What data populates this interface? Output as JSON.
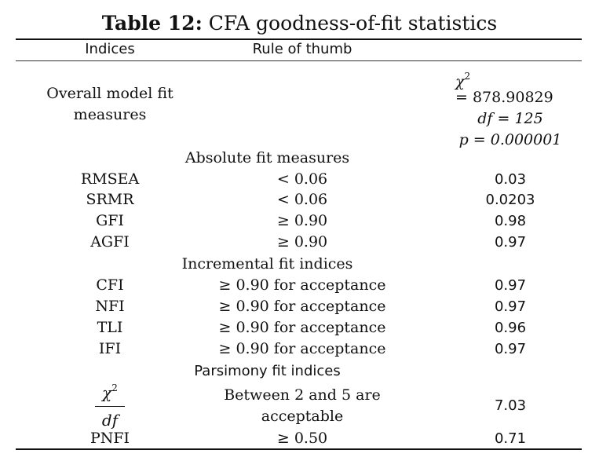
{
  "caption": {
    "label": "Table 12:",
    "text": "CFA goodness-of-fit statistics"
  },
  "header": {
    "col1": "Indices",
    "col2": "Rule of thumb",
    "col3": ""
  },
  "overall": {
    "label_line1": "Overall model fit",
    "label_line2": "measures",
    "chi_symbol": "χ",
    "chi_sup": "2",
    "chi_value": "= 878.90829",
    "df_line": "df = 125",
    "p_line": "p = 0.000001"
  },
  "sections": {
    "absolute": "Absolute fit measures",
    "incremental": "Incremental fit indices",
    "parsimony": "Parsimony fit indices"
  },
  "rows": [
    {
      "index": "RMSEA",
      "rule": "< 0.06",
      "value": "0.03"
    },
    {
      "index": "SRMR",
      "rule": "< 0.06",
      "value": "0.0203"
    },
    {
      "index": "GFI",
      "rule": "≥ 0.90",
      "value": "0.98"
    },
    {
      "index": "AGFI",
      "rule": "≥ 0.90",
      "value": "0.97"
    },
    {
      "index": "CFI",
      "rule": "≥ 0.90 for acceptance",
      "value": "0.97"
    },
    {
      "index": "NFI",
      "rule": "≥ 0.90 for acceptance",
      "value": "0.97"
    },
    {
      "index": "TLI",
      "rule": "≥ 0.90 for acceptance",
      "value": "0.96"
    },
    {
      "index": "IFI",
      "rule": "≥ 0.90 for acceptance",
      "value": "0.97"
    }
  ],
  "chi_df": {
    "numerator": "χ",
    "numerator_sup": "2",
    "denominator": "df",
    "rule_line1": "Between 2 and 5 are",
    "rule_line2": "acceptable",
    "value": "7.03"
  },
  "pnfi": {
    "index": "PNFI",
    "rule": "≥ 0.50",
    "value": "0.71"
  }
}
